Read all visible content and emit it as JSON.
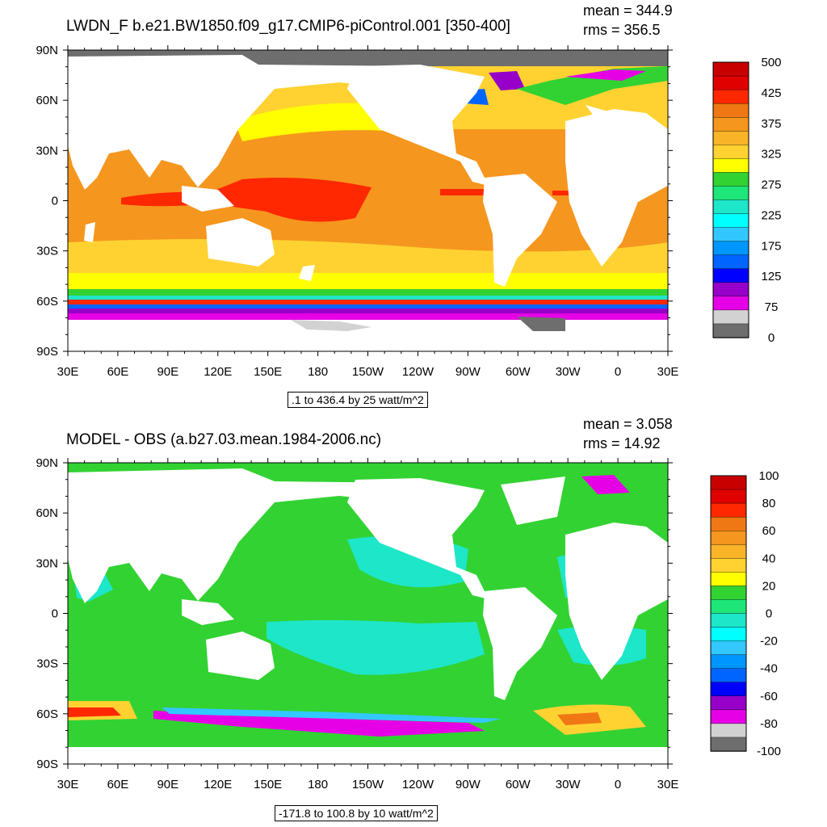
{
  "panels": [
    {
      "title": "LWDN_F b.e21.BW1850.f09_g17.CMIP6-piControl.001 [350-400]",
      "mean_label": "mean = 344.9",
      "rms_label": "rms = 356.5",
      "range_label": ".1 to 436.4 by 25 watt/m^2",
      "colorbar": {
        "labels": [
          "500",
          "425",
          "375",
          "325",
          "275",
          "225",
          "175",
          "125",
          "75",
          "0"
        ],
        "colors": [
          "#c80000",
          "#e00000",
          "#ff2800",
          "#f07814",
          "#f5961e",
          "#fab428",
          "#ffd232",
          "#ffff00",
          "#32d232",
          "#1ee678",
          "#1ee6c8",
          "#00ffff",
          "#32c8ff",
          "#0096ff",
          "#0064ff",
          "#0000ff",
          "#9600c8",
          "#e600e6",
          "#d2d2d2",
          "#6e6e6e"
        ]
      }
    },
    {
      "title": "MODEL - OBS (a.b27.03.mean.1984-2006.nc)",
      "mean_label": "mean = 3.058",
      "rms_label": "rms = 14.92",
      "range_label": "-171.8 to 100.8 by 10 watt/m^2",
      "colorbar": {
        "labels": [
          "100",
          "80",
          "60",
          "40",
          "20",
          "0",
          "-20",
          "-40",
          "-60",
          "-80",
          "-100"
        ],
        "colors": [
          "#c80000",
          "#e00000",
          "#ff2800",
          "#f07814",
          "#f5961e",
          "#fab428",
          "#ffd232",
          "#ffff00",
          "#32d232",
          "#1ee678",
          "#1ee6c8",
          "#00ffff",
          "#32c8ff",
          "#0096ff",
          "#0064ff",
          "#0000ff",
          "#9600c8",
          "#e600e6",
          "#d2d2d2",
          "#6e6e6e"
        ]
      }
    }
  ],
  "axes": {
    "lat_labels": [
      "90N",
      "60N",
      "30N",
      "0",
      "30S",
      "60S",
      "90S"
    ],
    "lon_labels": [
      "30E",
      "60E",
      "90E",
      "120E",
      "150E",
      "180",
      "150W",
      "120W",
      "90W",
      "60W",
      "30W",
      "0",
      "30E"
    ]
  }
}
